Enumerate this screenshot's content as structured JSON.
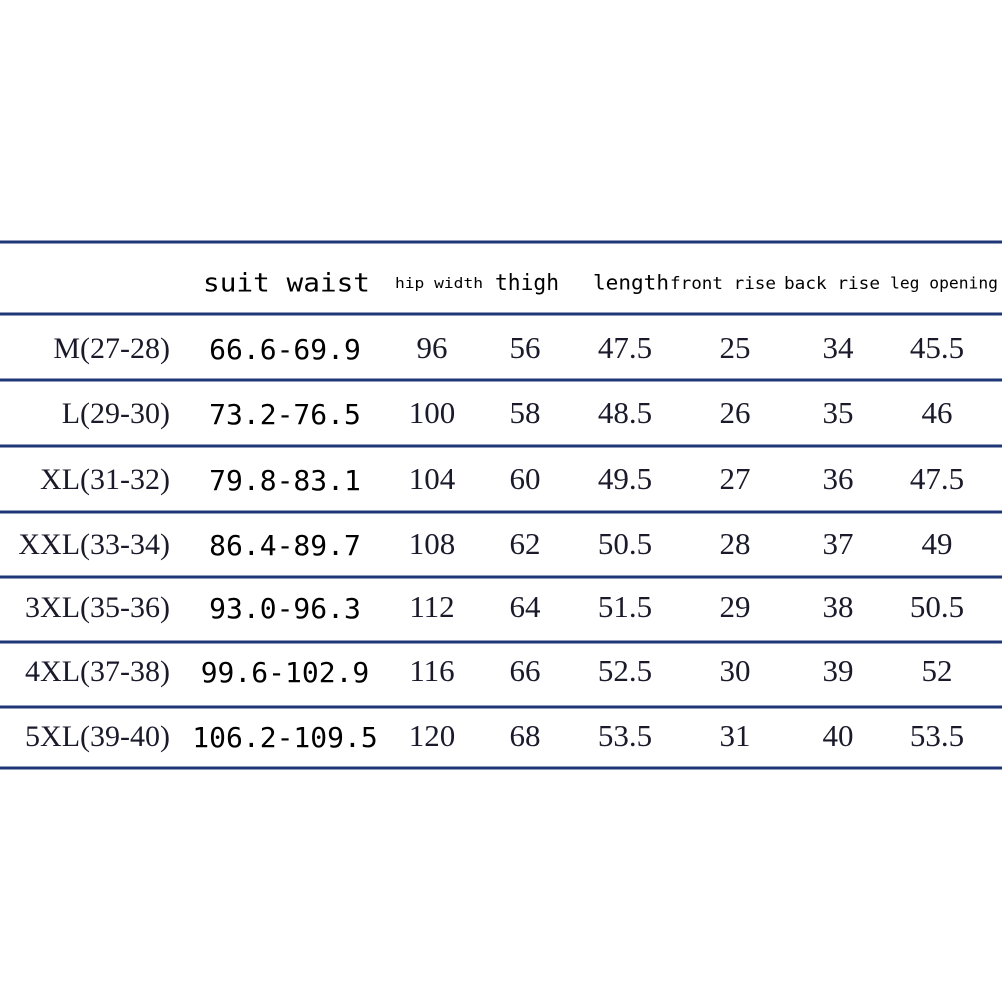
{
  "table": {
    "header": [
      "suit waist",
      "hip width",
      "thigh",
      "length",
      "front rise",
      "back rise",
      "leg opening"
    ],
    "rows": [
      [
        "M(27-28)",
        "66.6-69.9",
        "96",
        "56",
        "47.5",
        "25",
        "34",
        "45.5"
      ],
      [
        "L(29-30)",
        "73.2-76.5",
        "100",
        "58",
        "48.5",
        "26",
        "35",
        "46"
      ],
      [
        "XL(31-32)",
        "79.8-83.1",
        "104",
        "60",
        "49.5",
        "27",
        "36",
        "47.5"
      ],
      [
        "XXL(33-34)",
        "86.4-89.7",
        "108",
        "62",
        "50.5",
        "28",
        "37",
        "49"
      ],
      [
        "3XL(35-36)",
        "93.0-96.3",
        "112",
        "64",
        "51.5",
        "29",
        "38",
        "50.5"
      ],
      [
        "4XL(37-38)",
        "99.6-102.9",
        "116",
        "66",
        "52.5",
        "30",
        "39",
        "52"
      ],
      [
        "5XL(39-40)",
        "106.2-109.5",
        "120",
        "68",
        "53.5",
        "31",
        "40",
        "53.5"
      ]
    ]
  }
}
